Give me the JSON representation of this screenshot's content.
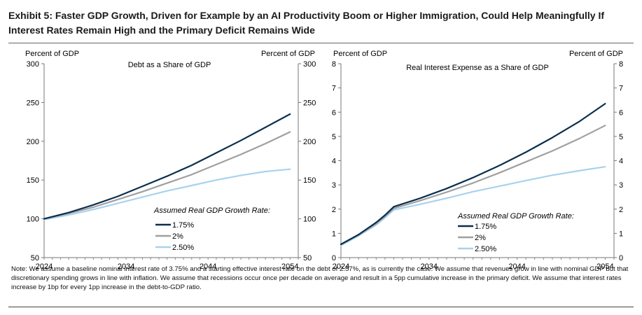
{
  "title": "Exhibit 5: Faster GDP Growth, Driven for Example by an AI Productivity Boom or Higher Immigration, Could Help Meaningfully If Interest Rates Remain High and the Primary Deficit Remains Wide",
  "note": "Note: We assume a baseline nominal interest rate of 3.75% and a starting effective interest rate on the debt of 2.57%, as is currently the case. We assume that revenues grow in line with nominal GDP but that discretionary spending grows in line with inflation. We assume that recessions occur once per decade on average and result in a 5pp cumulative increase in the primary deficit. We assume that interest rates increase by 1bp for every 1pp increase in the debt-to-GDP ratio.",
  "colors": {
    "s1": "#0b2f4e",
    "s2": "#a0a0a0",
    "s3": "#a8d2ee"
  },
  "chart_data": [
    {
      "type": "line",
      "title": "Debt as a Share of GDP",
      "ylabel_left": "Percent of GDP",
      "ylabel_right": "Percent of GDP",
      "ylim": [
        50,
        300
      ],
      "yticks": [
        50,
        100,
        150,
        200,
        250,
        300
      ],
      "xlim": [
        2024,
        2055
      ],
      "xticks": [
        2024,
        2034,
        2044,
        2054
      ],
      "legend_title": "Assumed Real GDP Growth Rate:",
      "series": [
        {
          "name": "1.75%",
          "color": "s1",
          "x": [
            2024,
            2027,
            2030,
            2033,
            2036,
            2039,
            2042,
            2045,
            2048,
            2051,
            2054
          ],
          "values": [
            100,
            108,
            118,
            129,
            142,
            155,
            169,
            185,
            201,
            218,
            235
          ]
        },
        {
          "name": "2%",
          "color": "s2",
          "x": [
            2024,
            2027,
            2030,
            2033,
            2036,
            2039,
            2042,
            2045,
            2048,
            2051,
            2054
          ],
          "values": [
            100,
            107,
            115,
            125,
            135,
            146,
            157,
            170,
            183,
            197,
            212
          ]
        },
        {
          "name": "2.50%",
          "color": "s3",
          "x": [
            2024,
            2027,
            2030,
            2033,
            2036,
            2039,
            2042,
            2045,
            2048,
            2051,
            2054
          ],
          "values": [
            99,
            105,
            112,
            120,
            128,
            136,
            143,
            150,
            156,
            161,
            164
          ]
        }
      ]
    },
    {
      "type": "line",
      "title": "Real Interest Expense as a Share of GDP",
      "ylabel_left": "Percent of GDP",
      "ylabel_right": "Percent of GDP",
      "ylim": [
        0,
        8
      ],
      "yticks": [
        0,
        1,
        2,
        3,
        4,
        5,
        6,
        7,
        8
      ],
      "xlim": [
        2024,
        2055
      ],
      "xticks": [
        2024,
        2034,
        2044,
        2054
      ],
      "legend_title": "Assumed Real GDP Growth Rate:",
      "series": [
        {
          "name": "1.75%",
          "color": "s1",
          "x": [
            2024,
            2026,
            2028,
            2029,
            2030,
            2033,
            2036,
            2039,
            2042,
            2045,
            2048,
            2051,
            2054
          ],
          "values": [
            0.55,
            0.95,
            1.45,
            1.75,
            2.1,
            2.45,
            2.85,
            3.3,
            3.8,
            4.35,
            4.95,
            5.6,
            6.35
          ]
        },
        {
          "name": "2%",
          "color": "s2",
          "x": [
            2024,
            2026,
            2028,
            2029,
            2030,
            2033,
            2036,
            2039,
            2042,
            2045,
            2048,
            2051,
            2054
          ],
          "values": [
            0.55,
            0.93,
            1.4,
            1.7,
            2.03,
            2.35,
            2.7,
            3.08,
            3.5,
            3.95,
            4.4,
            4.9,
            5.45
          ]
        },
        {
          "name": "2.50%",
          "color": "s3",
          "x": [
            2024,
            2026,
            2028,
            2029,
            2030,
            2033,
            2036,
            2039,
            2042,
            2045,
            2048,
            2051,
            2054
          ],
          "values": [
            0.5,
            0.9,
            1.35,
            1.65,
            1.97,
            2.2,
            2.45,
            2.72,
            2.95,
            3.18,
            3.4,
            3.58,
            3.75
          ]
        }
      ]
    }
  ]
}
